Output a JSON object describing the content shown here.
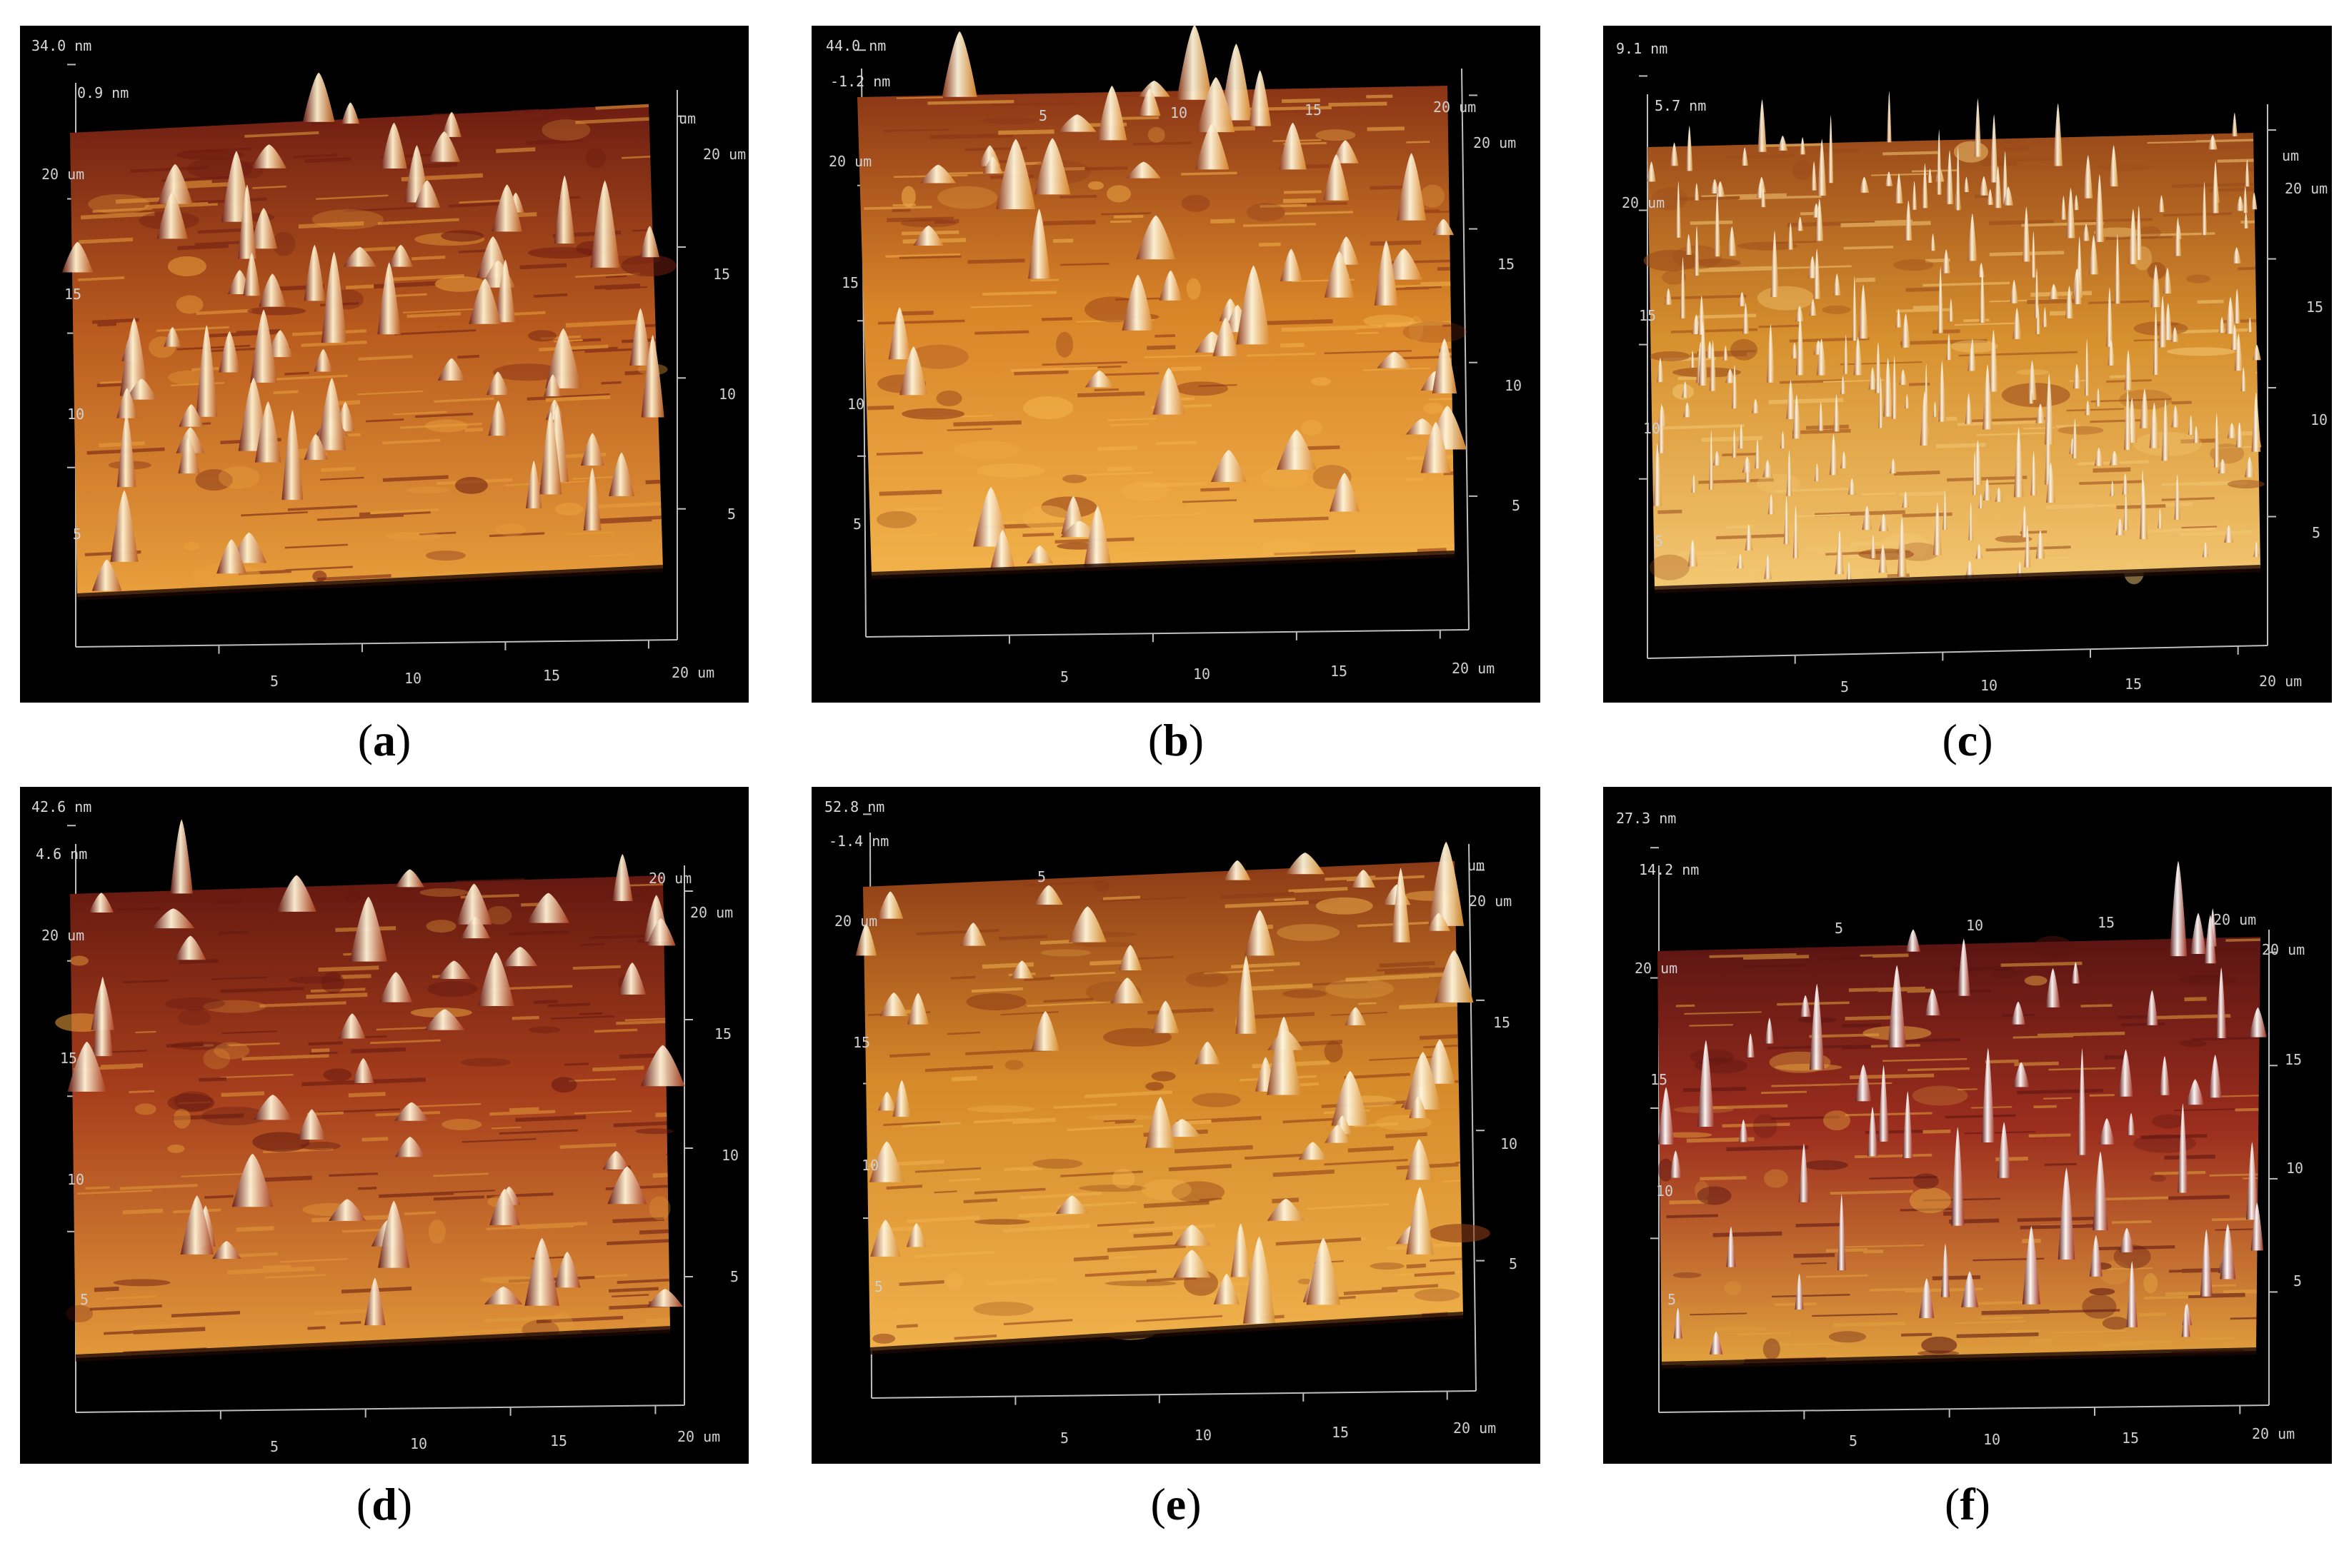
{
  "panels": [
    {
      "id": "a",
      "caption": "a",
      "z_max": "34.0 nm",
      "z_min": "0.9 nm",
      "x_ticks": [
        "5",
        "10",
        "15",
        "20 um"
      ],
      "y_ticks": [
        "5",
        "10",
        "15",
        "20 um"
      ],
      "r_ticks": [
        "5",
        "10",
        "15",
        "20 um"
      ],
      "back_ticks": [
        "um"
      ],
      "colors": {
        "base": "#b85a1e",
        "light": "#e9a03c",
        "dark": "#6e1c12",
        "peak": "#fff2d0"
      }
    },
    {
      "id": "b",
      "caption": "b",
      "z_max": "44.0 nm",
      "z_min": "-1.2 nm",
      "x_ticks": [
        "5",
        "10",
        "15",
        "20 um"
      ],
      "y_ticks": [
        "5",
        "10",
        "15",
        "20 um"
      ],
      "r_ticks": [
        "5",
        "10",
        "15",
        "20 um"
      ],
      "back_ticks": [
        "5",
        "10",
        "15",
        "20 um"
      ],
      "colors": {
        "base": "#d88428",
        "light": "#f2b24a",
        "dark": "#8a3416",
        "peak": "#fff6dc"
      }
    },
    {
      "id": "c",
      "caption": "c",
      "z_max": "9.1 nm",
      "z_min": "5.7 nm",
      "x_ticks": [
        "5",
        "10",
        "15",
        "20 um"
      ],
      "y_ticks": [
        "5",
        "10",
        "15",
        "20 um"
      ],
      "r_ticks": [
        "5",
        "10",
        "15",
        "20 um"
      ],
      "back_ticks": [
        "um"
      ],
      "colors": {
        "base": "#d7902e",
        "light": "#f3c873",
        "dark": "#9a4a1a",
        "peak": "#fff8e6"
      }
    },
    {
      "id": "d",
      "caption": "d",
      "z_max": "42.6 nm",
      "z_min": "4.6 nm",
      "x_ticks": [
        "5",
        "10",
        "15",
        "20 um"
      ],
      "y_ticks": [
        "5",
        "10",
        "15",
        "20 um"
      ],
      "r_ticks": [
        "5",
        "10",
        "15",
        "20 um"
      ],
      "back_ticks": [
        "20 um"
      ],
      "colors": {
        "base": "#a63e1c",
        "light": "#e39a3a",
        "dark": "#641810",
        "peak": "#fff4d8"
      }
    },
    {
      "id": "e",
      "caption": "e",
      "z_max": "52.8 nm",
      "z_min": "-1.4 nm",
      "x_ticks": [
        "5",
        "10",
        "15",
        "20 um"
      ],
      "y_ticks": [
        "5",
        "10",
        "15",
        "20 um"
      ],
      "r_ticks": [
        "5",
        "10",
        "15",
        "20 um"
      ],
      "back_ticks": [
        "5",
        "um"
      ],
      "colors": {
        "base": "#d68a2a",
        "light": "#f0b24c",
        "dark": "#8c3a16",
        "peak": "#fff6dc"
      }
    },
    {
      "id": "f",
      "caption": "f",
      "z_max": "27.3 nm",
      "z_min": "14.2 nm",
      "x_ticks": [
        "5",
        "10",
        "15",
        "20 um"
      ],
      "y_ticks": [
        "5",
        "10",
        "15",
        "20 um"
      ],
      "r_ticks": [
        "5",
        "10",
        "15",
        "20 um"
      ],
      "back_ticks": [
        "5",
        "10",
        "15",
        "20 um"
      ],
      "colors": {
        "base": "#9c2e1e",
        "light": "#e2a23e",
        "dark": "#5a1412",
        "peak": "#ffffff"
      }
    }
  ]
}
